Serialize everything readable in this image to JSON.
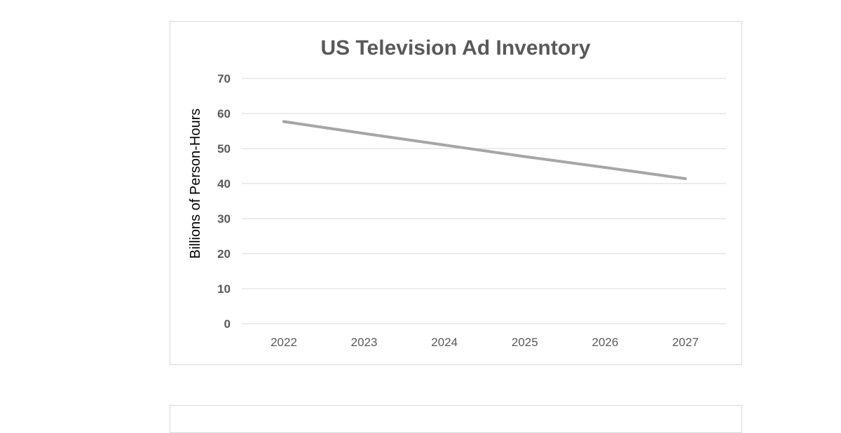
{
  "chart_data": {
    "type": "line",
    "title": "US Television Ad Inventory",
    "xlabel": "",
    "ylabel": "Billions of Person-Hours",
    "categories": [
      "2022",
      "2023",
      "2024",
      "2025",
      "2026",
      "2027"
    ],
    "series": [
      {
        "values": [
          57.7,
          54.3,
          51.0,
          47.7,
          44.6,
          41.4
        ]
      }
    ],
    "ylim": [
      0,
      70
    ],
    "yticks": [
      0,
      10,
      20,
      30,
      40,
      50,
      60,
      70
    ],
    "grid": true,
    "legend": "none",
    "colors": {
      "series": "#a6a6a6",
      "grid": "#d9d9d9",
      "text": "#595959"
    }
  }
}
